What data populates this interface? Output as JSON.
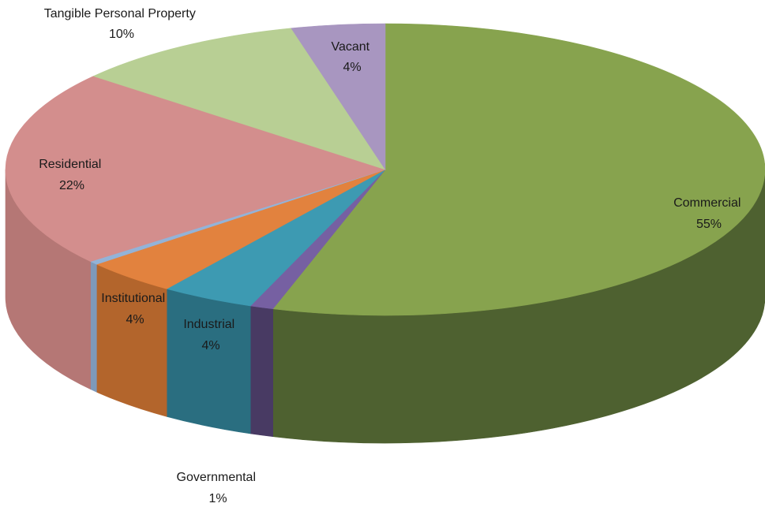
{
  "chart_data": {
    "type": "pie",
    "style": "3d",
    "legend": "none",
    "slices": [
      {
        "label": "Commercial",
        "value": 55,
        "display": "55%",
        "color": "#87A34E",
        "side_color": "#4E6130"
      },
      {
        "label": "Governmental",
        "value": 1,
        "display": "1%",
        "color": "#7660A2",
        "side_color": "#483A63"
      },
      {
        "label": "Industrial",
        "value": 4,
        "display": "4%",
        "color": "#3D9AB2",
        "side_color": "#2A6E80"
      },
      {
        "label": "Institutional",
        "value": 4,
        "display": "4%",
        "color": "#E2823E",
        "side_color": "#B3652C"
      },
      {
        "label": "",
        "value": 0.4,
        "display": "",
        "color": "#93B3D8",
        "side_color": "#7E99BA"
      },
      {
        "label": "Residential",
        "value": 22,
        "display": "22%",
        "color": "#D38E8D",
        "side_color": "#B57775"
      },
      {
        "label": "Tangible Personal Property",
        "value": 10,
        "display": "10%",
        "color": "#B8CF94",
        "side_color": "#9CB37A"
      },
      {
        "label": "Vacant",
        "value": 4,
        "display": "4%",
        "color": "#A896C0",
        "side_color": "#8B7BA3"
      }
    ]
  }
}
